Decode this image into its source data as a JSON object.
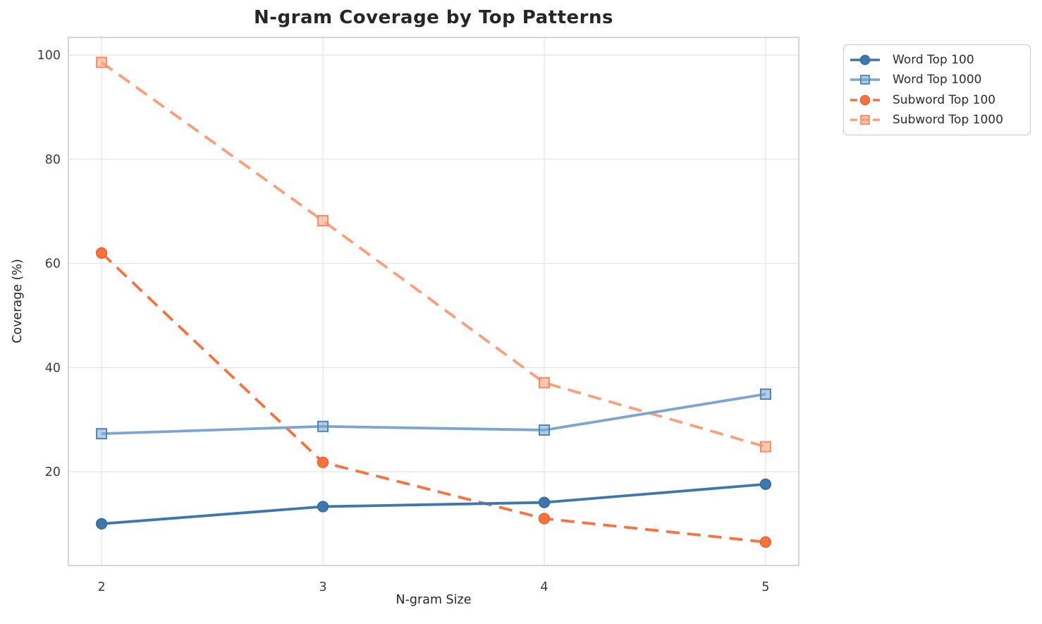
{
  "chart_data": {
    "type": "line",
    "title": "N-gram Coverage by Top Patterns",
    "xlabel": "N-gram Size",
    "ylabel": "Coverage (%)",
    "x": [
      2,
      3,
      4,
      5
    ],
    "xticks": [
      "2",
      "3",
      "4",
      "5"
    ],
    "yticks": [
      20,
      40,
      60,
      80,
      100
    ],
    "xlim": [
      1.85,
      5.15
    ],
    "ylim": [
      2.0,
      103.4
    ],
    "grid": true,
    "legend_position": "outside-upper-right",
    "series": [
      {
        "name": "Word Top 100",
        "values": [
          10.0,
          13.3,
          14.1,
          17.6
        ],
        "color": "#3d77ad",
        "marker_edge": "#356a9c",
        "line_style": "solid",
        "marker": "circle"
      },
      {
        "name": "Word Top 1000",
        "values": [
          27.3,
          28.7,
          28.0,
          34.9
        ],
        "color": "#7aa6cf",
        "marker_edge": "#4d86b8",
        "line_style": "solid",
        "marker": "square"
      },
      {
        "name": "Subword Top 100",
        "values": [
          62.0,
          21.8,
          11.0,
          6.5
        ],
        "color": "#f8713f",
        "marker_edge": "#e9602f",
        "line_style": "dashed",
        "marker": "circle"
      },
      {
        "name": "Subword Top 1000",
        "values": [
          98.6,
          68.2,
          37.1,
          24.8
        ],
        "color": "#fb9e7c",
        "marker_edge": "#f98a61",
        "line_style": "dashed",
        "marker": "square"
      }
    ]
  },
  "colors": {
    "background": "#ffffff",
    "grid": "#e8e8e8",
    "spine": "#cccccc",
    "tick_label": "#3b3b3b",
    "title": "#262626"
  }
}
